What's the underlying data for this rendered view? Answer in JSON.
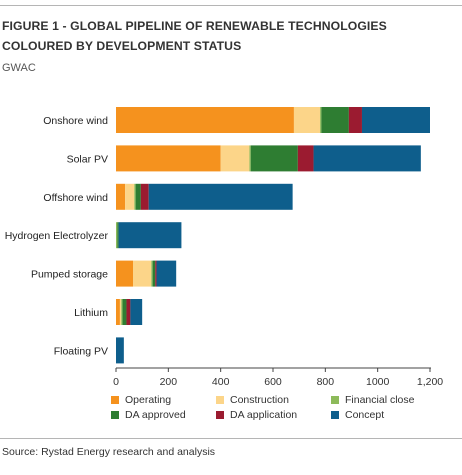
{
  "title": "FIGURE 1 - GLOBAL PIPELINE OF RENEWABLE TECHNOLOGIES COLOURED BY DEVELOPMENT STATUS",
  "unit": "GWAC",
  "source": "Source: Rystad Energy research and analysis",
  "chart_data": {
    "type": "bar",
    "orientation": "horizontal",
    "stacked": true,
    "categories": [
      "Onshore wind",
      "Solar PV",
      "Offshore wind",
      "Hydrogen Electrolyzer",
      "Pumped storage",
      "Lithium",
      "Floating PV"
    ],
    "series": [
      {
        "name": "Operating",
        "color": "#f5921e",
        "values": [
          680,
          400,
          35,
          0,
          65,
          15,
          0
        ]
      },
      {
        "name": "Construction",
        "color": "#fcd589",
        "values": [
          100,
          110,
          35,
          0,
          70,
          5,
          0
        ]
      },
      {
        "name": "Financial close",
        "color": "#8dba5a",
        "values": [
          5,
          5,
          5,
          5,
          5,
          5,
          0
        ]
      },
      {
        "name": "DA approved",
        "color": "#2e7d32",
        "values": [
          105,
          180,
          20,
          5,
          10,
          15,
          0
        ]
      },
      {
        "name": "DA application",
        "color": "#9b1b30",
        "values": [
          50,
          60,
          30,
          0,
          5,
          15,
          0
        ]
      },
      {
        "name": "Concept",
        "color": "#0e5e8c",
        "values": [
          260,
          410,
          550,
          240,
          75,
          45,
          30
        ]
      }
    ],
    "x_ticks": [
      0,
      200,
      400,
      600,
      800,
      1000,
      1200
    ],
    "x_tick_labels": [
      "0",
      "200",
      "400",
      "600",
      "800",
      "1000",
      "1,200"
    ],
    "xlim": [
      0,
      1200
    ],
    "legend_position": "bottom",
    "grid": false
  }
}
